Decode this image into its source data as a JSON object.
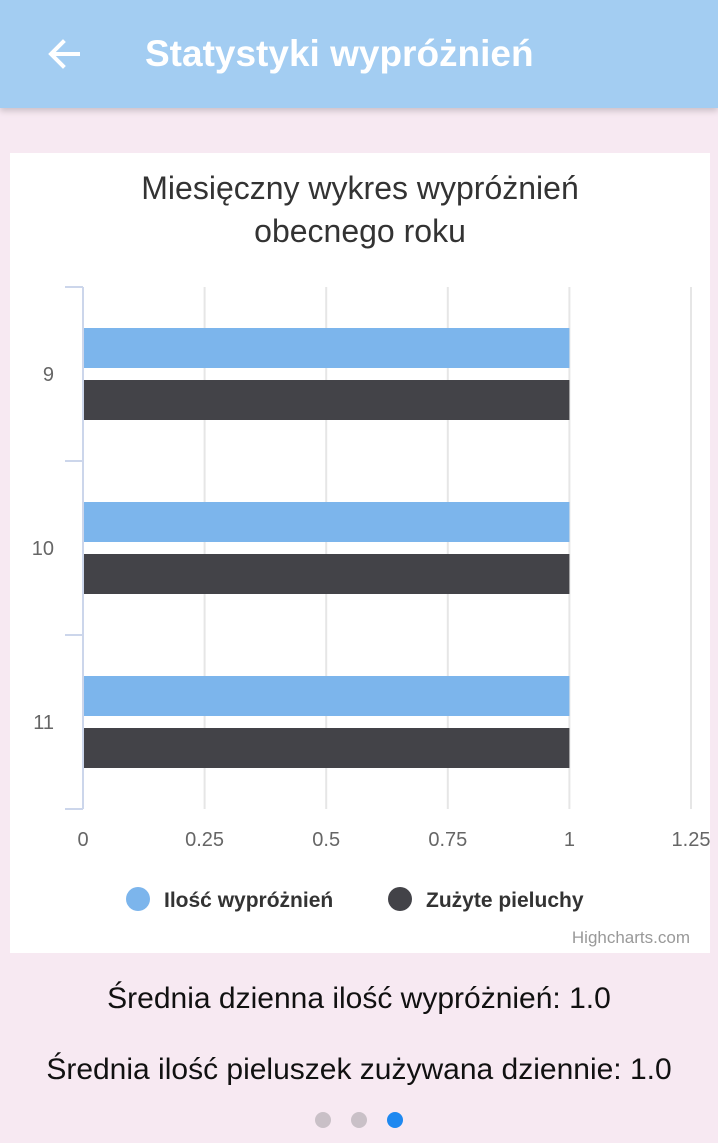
{
  "header": {
    "title": "Statystyki wypróżnień",
    "back_icon": "arrow-back-icon"
  },
  "chart_data": {
    "type": "bar",
    "orientation": "horizontal",
    "title": "Miesięczny wykres wypróżnień obecnego roku",
    "title_lines": [
      "Miesięczny wykres wypróżnień",
      "obecnego roku"
    ],
    "categories": [
      "9",
      "10",
      "11"
    ],
    "series": [
      {
        "name": "Ilość wypróżnień",
        "values": [
          1,
          1,
          1
        ],
        "color": "#7cb5ec"
      },
      {
        "name": "Zużyte pieluchy",
        "values": [
          1,
          1,
          1
        ],
        "color": "#434348"
      }
    ],
    "xlim": [
      0,
      1.25
    ],
    "ticks": [
      "0",
      "0.25",
      "0.5",
      "0.75",
      "1",
      "1.25"
    ],
    "grid": true,
    "legend_position": "bottom",
    "credits": "Highcharts.com"
  },
  "stats": {
    "avg_bowel_movements": "Średnia dzienna ilość wypróżnień: 1.0",
    "avg_diapers": "Średnia ilość pieluszek zużywana dziennie: 1.0"
  },
  "pager": {
    "pages": 3,
    "active": 2
  }
}
